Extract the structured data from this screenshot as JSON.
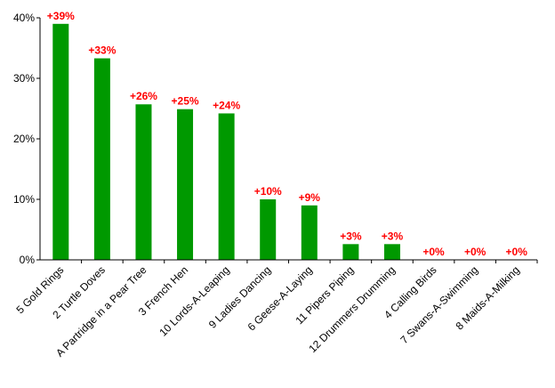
{
  "chart_data": {
    "type": "bar",
    "title": "",
    "xlabel": "",
    "ylabel": "",
    "ylim": [
      0,
      40
    ],
    "yticks": [
      "0%",
      "10%",
      "20%",
      "30%",
      "40%"
    ],
    "grid": false,
    "bar_color": "#009900",
    "label_color": "#ff0000",
    "categories": [
      "5 Gold Rings",
      "2 Turtle Doves",
      "A Partridge in a Pear Tree",
      "3 French Hen",
      "10 Lords-A-Leaping",
      "9 Ladies Dancing",
      "6 Geese-A-Laying",
      "11 Pipers Piping",
      "12 Drummers Drumming",
      "4 Calling Birds",
      "7 Swans-A-Swimming",
      "8 Maids-A-Milking"
    ],
    "values": [
      39,
      33.3,
      25.7,
      24.9,
      24.2,
      10,
      9,
      2.6,
      2.6,
      0,
      0,
      0
    ],
    "data_labels": [
      "+39%",
      "+33%",
      "+26%",
      "+25%",
      "+24%",
      "+10%",
      "+9%",
      "+3%",
      "+3%",
      "+0%",
      "+0%",
      "+0%"
    ]
  }
}
